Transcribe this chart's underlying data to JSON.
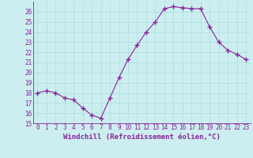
{
  "x": [
    0,
    1,
    2,
    3,
    4,
    5,
    6,
    7,
    8,
    9,
    10,
    11,
    12,
    13,
    14,
    15,
    16,
    17,
    18,
    19,
    20,
    21,
    22,
    23
  ],
  "y": [
    18,
    18.2,
    18,
    17.5,
    17.3,
    16.5,
    15.8,
    15.5,
    17.5,
    19.5,
    21.3,
    22.7,
    24.0,
    25.0,
    26.3,
    26.5,
    26.4,
    26.3,
    26.3,
    24.5,
    23.0,
    22.2,
    21.8,
    21.3
  ],
  "line_color": "#882299",
  "marker": "+",
  "marker_size": 4,
  "marker_linewidth": 1.0,
  "bg_color": "#cceef0",
  "grid_color": "#aadddd",
  "tick_color": "#882299",
  "label_color": "#882299",
  "xlabel": "Windchill (Refroidissement éolien,°C)",
  "ylim": [
    15,
    27
  ],
  "xlim": [
    -0.5,
    23.5
  ],
  "yticks": [
    15,
    16,
    17,
    18,
    19,
    20,
    21,
    22,
    23,
    24,
    25,
    26
  ],
  "xticks": [
    0,
    1,
    2,
    3,
    4,
    5,
    6,
    7,
    8,
    9,
    10,
    11,
    12,
    13,
    14,
    15,
    16,
    17,
    18,
    19,
    20,
    21,
    22,
    23
  ],
  "tick_fontsize": 5.5,
  "xlabel_fontsize": 6.5,
  "linewidth": 0.8
}
